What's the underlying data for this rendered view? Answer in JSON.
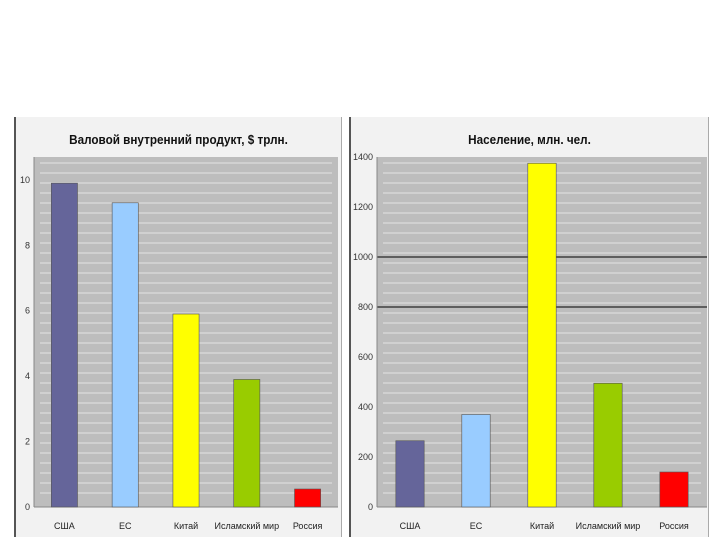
{
  "charts": [
    {
      "id": "gdp",
      "title": "Валовой внутренний продукт, $ трлн.",
      "chart_data_index": 0
    },
    {
      "id": "population",
      "title": "Население, млн. чел.",
      "chart_data_index": 1
    }
  ],
  "chart_data": [
    {
      "type": "bar",
      "title": "Валовой внутренний продукт, $ трлн.",
      "categories": [
        "США",
        "ЕС",
        "Китай",
        "Исламский мир",
        "Россия"
      ],
      "values": [
        9.9,
        9.3,
        5.9,
        3.9,
        0.55
      ],
      "colors": [
        "#65659a",
        "#99ccff",
        "#ffff00",
        "#99cc00",
        "#ff0000"
      ],
      "yticks": [
        0,
        2,
        4,
        6,
        8,
        10
      ],
      "ylim": [
        0,
        10.7
      ],
      "xlabel": "",
      "ylabel": "",
      "grid": false,
      "emphasized_gridlines": []
    },
    {
      "type": "bar",
      "title": "Население, млн. чел.",
      "categories": [
        "США",
        "ЕС",
        "Китай",
        "Исламский мир",
        "Россия"
      ],
      "values": [
        265,
        370,
        1375,
        495,
        140
      ],
      "colors": [
        "#65659a",
        "#99ccff",
        "#ffff00",
        "#99cc00",
        "#ff0000"
      ],
      "yticks": [
        0,
        200,
        400,
        600,
        800,
        1000,
        1200,
        1400
      ],
      "ylim": [
        0,
        1400
      ],
      "xlabel": "",
      "ylabel": "",
      "grid": false,
      "emphasized_gridlines": [
        800,
        1000
      ]
    }
  ]
}
